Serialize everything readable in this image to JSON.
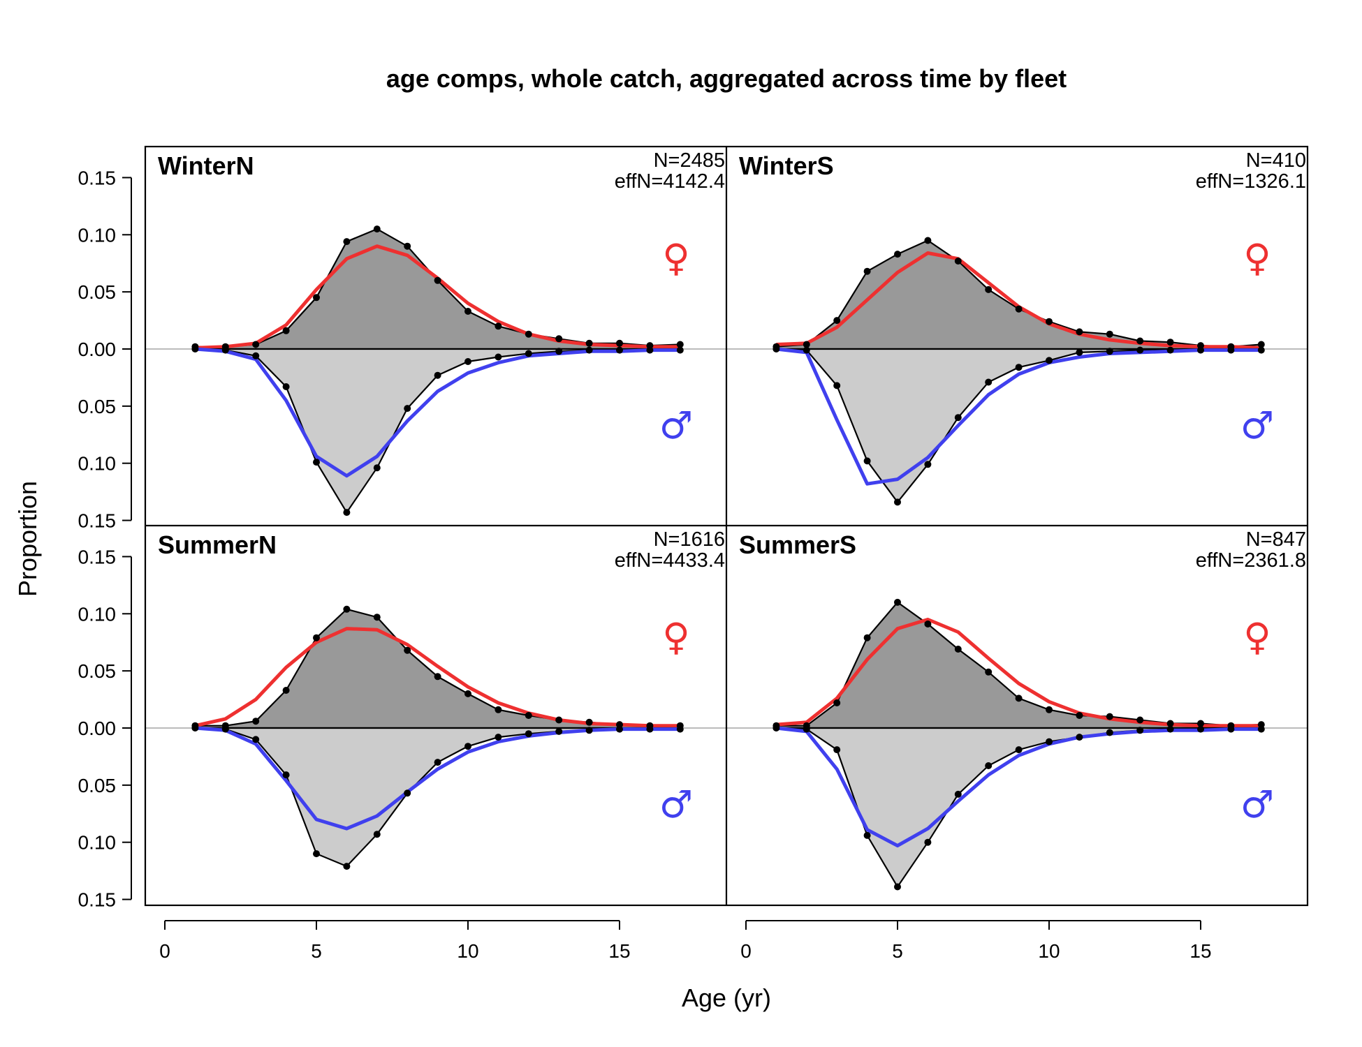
{
  "chart_data": {
    "type": "area",
    "title": "age comps, whole catch, aggregated across time by fleet",
    "xlabel": "Age (yr)",
    "ylabel": "Proportion",
    "xlim": [
      0,
      17
    ],
    "ylim": [
      -0.15,
      0.15
    ],
    "x_ticks": [
      "0",
      "5",
      "10",
      "15"
    ],
    "y_ticks": [
      "0.15",
      "0.10",
      "0.05",
      "0.00",
      "0.05",
      "0.10",
      "0.15"
    ],
    "female_symbol": "♀",
    "male_symbol": "♂",
    "colors": {
      "female_fit": "#ee3030",
      "male_fit": "#4040ee",
      "female_obs_fill": "#999999",
      "male_obs_fill": "#cccccc",
      "zero_line": "#bbbbbb"
    },
    "panels": [
      {
        "name": "WinterN",
        "n_label": "N=2485",
        "effn_label": "effN=4142.4",
        "ages": [
          1,
          2,
          3,
          4,
          5,
          6,
          7,
          8,
          9,
          10,
          11,
          12,
          13,
          14,
          15,
          16,
          17
        ],
        "female_obs": [
          0.002,
          0.002,
          0.004,
          0.016,
          0.045,
          0.094,
          0.105,
          0.09,
          0.06,
          0.033,
          0.02,
          0.013,
          0.009,
          0.005,
          0.005,
          0.003,
          0.004
        ],
        "female_fit": [
          0.001,
          0.002,
          0.005,
          0.021,
          0.052,
          0.079,
          0.09,
          0.082,
          0.062,
          0.04,
          0.024,
          0.013,
          0.007,
          0.004,
          0.003,
          0.002,
          0.002
        ],
        "male_obs": [
          0,
          0.001,
          0.006,
          0.033,
          0.099,
          0.143,
          0.104,
          0.052,
          0.023,
          0.011,
          0.007,
          0.004,
          0.002,
          0.001,
          0.001,
          0.001,
          0.001
        ],
        "male_fit": [
          0,
          0.002,
          0.009,
          0.045,
          0.094,
          0.111,
          0.094,
          0.063,
          0.037,
          0.021,
          0.012,
          0.006,
          0.004,
          0.002,
          0.002,
          0.001,
          0.001
        ]
      },
      {
        "name": "WinterS",
        "n_label": "N=410",
        "effn_label": "effN=1326.1",
        "ages": [
          1,
          2,
          3,
          4,
          5,
          6,
          7,
          8,
          9,
          10,
          11,
          12,
          13,
          14,
          15,
          16,
          17
        ],
        "female_obs": [
          0.002,
          0.004,
          0.025,
          0.068,
          0.083,
          0.095,
          0.077,
          0.052,
          0.035,
          0.024,
          0.015,
          0.013,
          0.007,
          0.006,
          0.003,
          0.002,
          0.004
        ],
        "female_fit": [
          0.004,
          0.005,
          0.019,
          0.043,
          0.067,
          0.084,
          0.079,
          0.058,
          0.037,
          0.022,
          0.013,
          0.008,
          0.005,
          0.003,
          0.002,
          0.002,
          0.001
        ],
        "male_obs": [
          0,
          0.001,
          0.032,
          0.098,
          0.134,
          0.101,
          0.06,
          0.029,
          0.016,
          0.01,
          0.003,
          0.002,
          0.001,
          0.001,
          0.001,
          0.001,
          0.001
        ],
        "male_fit": [
          0,
          0.003,
          0.062,
          0.118,
          0.114,
          0.095,
          0.067,
          0.04,
          0.022,
          0.012,
          0.007,
          0.004,
          0.003,
          0.002,
          0.001,
          0.001,
          0.001
        ]
      },
      {
        "name": "SummerN",
        "n_label": "N=1616",
        "effn_label": "effN=4433.4",
        "ages": [
          1,
          2,
          3,
          4,
          5,
          6,
          7,
          8,
          9,
          10,
          11,
          12,
          13,
          14,
          15,
          16,
          17
        ],
        "female_obs": [
          0.002,
          0.002,
          0.006,
          0.033,
          0.079,
          0.104,
          0.097,
          0.068,
          0.045,
          0.03,
          0.016,
          0.011,
          0.007,
          0.005,
          0.003,
          0.002,
          0.002
        ],
        "female_fit": [
          0.002,
          0.008,
          0.025,
          0.053,
          0.075,
          0.087,
          0.086,
          0.073,
          0.054,
          0.036,
          0.022,
          0.013,
          0.007,
          0.004,
          0.003,
          0.002,
          0.002
        ],
        "male_obs": [
          0,
          0.001,
          0.01,
          0.041,
          0.11,
          0.121,
          0.093,
          0.057,
          0.03,
          0.016,
          0.008,
          0.005,
          0.003,
          0.002,
          0.001,
          0.001,
          0.001
        ],
        "male_fit": [
          0,
          0.002,
          0.014,
          0.046,
          0.08,
          0.088,
          0.077,
          0.056,
          0.036,
          0.021,
          0.012,
          0.007,
          0.004,
          0.002,
          0.001,
          0.001,
          0.001
        ]
      },
      {
        "name": "SummerS",
        "n_label": "N=847",
        "effn_label": "effN=2361.8",
        "ages": [
          1,
          2,
          3,
          4,
          5,
          6,
          7,
          8,
          9,
          10,
          11,
          12,
          13,
          14,
          15,
          16,
          17
        ],
        "female_obs": [
          0.002,
          0.002,
          0.022,
          0.079,
          0.11,
          0.091,
          0.069,
          0.049,
          0.026,
          0.016,
          0.011,
          0.01,
          0.007,
          0.004,
          0.004,
          0.002,
          0.003
        ],
        "female_fit": [
          0.003,
          0.005,
          0.026,
          0.06,
          0.087,
          0.095,
          0.084,
          0.061,
          0.039,
          0.023,
          0.013,
          0.008,
          0.005,
          0.003,
          0.002,
          0.002,
          0.002
        ],
        "male_obs": [
          0,
          0.001,
          0.019,
          0.094,
          0.139,
          0.1,
          0.058,
          0.033,
          0.019,
          0.012,
          0.008,
          0.004,
          0.002,
          0.001,
          0.001,
          0.001,
          0.001
        ],
        "male_fit": [
          0,
          0.003,
          0.036,
          0.089,
          0.103,
          0.088,
          0.064,
          0.041,
          0.024,
          0.014,
          0.008,
          0.005,
          0.003,
          0.002,
          0.002,
          0.001,
          0.001
        ]
      }
    ]
  }
}
